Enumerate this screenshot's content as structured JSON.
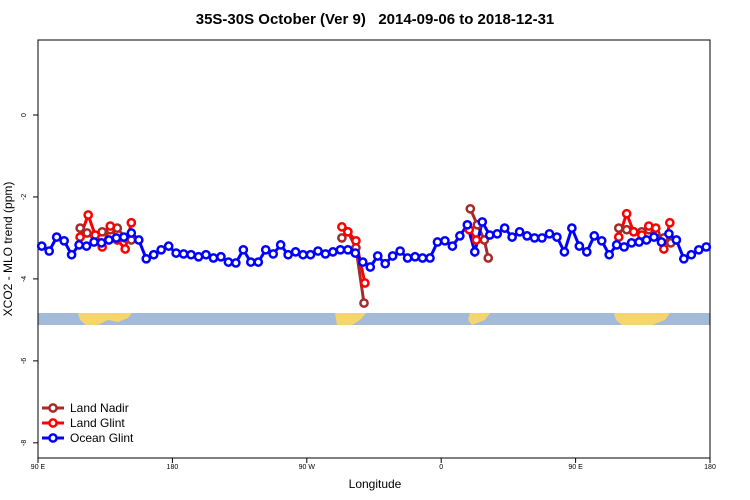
{
  "chart_data": {
    "type": "line",
    "title": "35S-30S October (Ver 9)   2014-09-06 to 2018-12-31",
    "x_label": "Longitude",
    "y_label": "XCO2 - MLO trend (ppm)",
    "xlim": [
      90,
      540
    ],
    "ylim": [
      -8.37,
      1.83
    ],
    "xticks": [
      {
        "value": 90,
        "label": "90 E"
      },
      180,
      {
        "value": 270,
        "label": "90 W"
      },
      {
        "value": 360,
        "label": "0"
      },
      {
        "value": 450,
        "label": "90 E"
      },
      {
        "value": 540,
        "label": "180"
      }
    ],
    "yticks": [
      -8,
      -6,
      -4,
      -2,
      0
    ],
    "legend": "bottom-left",
    "series": [
      {
        "name": "Land Nadir",
        "color": "#a52a2a",
        "x": [
          118.2,
          122.9,
          128.3,
          133.0,
          138.4,
          143.1,
          148.4,
          152.5,
          null,
          293.5,
          297.5,
          302.9,
          308.3,
          null,
          379.5,
          384.2,
          388.9,
          391.5,
          null,
          478.9,
          484.2,
          488.9,
          494.3,
          499.0,
          503.7,
          509.1,
          513.8
        ],
        "values": [
          -2.76,
          -2.88,
          -3.05,
          -2.85,
          -2.8,
          -2.76,
          -3.0,
          -3.05,
          null,
          -3.0,
          -2.85,
          -3.24,
          -4.59,
          null,
          -2.29,
          -2.68,
          -3.05,
          -3.49,
          null,
          -2.76,
          -2.8,
          -2.85,
          -2.85,
          -2.8,
          -2.9,
          -3.0,
          -3.12
        ]
      },
      {
        "name": "Land Glint",
        "color": "#ff0000",
        "x": [
          118.2,
          123.6,
          128.3,
          133.0,
          138.4,
          143.1,
          148.4,
          152.5,
          null,
          293.5,
          297.5,
          302.9,
          308.9,
          null,
          378.8,
          383.5,
          null,
          478.9,
          484.2,
          488.9,
          494.3,
          499.0,
          503.7,
          509.1,
          513.1
        ],
        "values": [
          -2.98,
          -2.44,
          -2.93,
          -3.22,
          -2.71,
          -3.05,
          -3.27,
          -2.63,
          null,
          -2.73,
          -2.85,
          -3.07,
          -4.1,
          null,
          -2.8,
          -3.05,
          null,
          -2.98,
          -2.41,
          -2.85,
          -2.93,
          -2.71,
          -2.76,
          -3.27,
          -2.63
        ]
      },
      {
        "name": "Ocean Glint",
        "color": "#0000ff",
        "x": [
          92.5,
          97.5,
          102.5,
          107.5,
          112.5,
          117.5,
          122.5,
          127.5,
          132.5,
          137.5,
          142.5,
          147.5,
          152.5,
          157.5,
          162.5,
          167.5,
          172.5,
          177.5,
          182.5,
          187.5,
          192.5,
          197.5,
          202.5,
          207.5,
          212.5,
          217.5,
          222.5,
          227.5,
          232.5,
          237.5,
          242.5,
          247.5,
          252.5,
          257.5,
          262.5,
          267.5,
          272.5,
          277.5,
          282.5,
          287.5,
          292.5,
          297.5,
          302.5,
          307.5,
          312.5,
          317.5,
          322.5,
          327.5,
          332.5,
          337.5,
          342.5,
          347.5,
          352.5,
          357.5,
          362.5,
          367.5,
          372.5,
          377.5,
          382.5,
          387.5,
          392.5,
          397.5,
          402.5,
          407.5,
          412.5,
          417.5,
          422.5,
          427.5,
          432.5,
          437.5,
          442.5,
          447.5,
          452.5,
          457.5,
          462.5,
          467.5,
          472.5,
          477.5,
          482.5,
          487.5,
          492.5,
          497.5,
          502.5,
          507.5,
          512.5,
          517.5,
          522.5,
          527.5,
          532.5,
          537.5
        ],
        "values": [
          -3.2,
          -3.32,
          -2.98,
          -3.07,
          -3.41,
          -3.17,
          -3.2,
          -3.1,
          -3.12,
          -3.05,
          -3.0,
          -2.98,
          -2.88,
          -3.05,
          -3.51,
          -3.41,
          -3.29,
          -3.2,
          -3.37,
          -3.39,
          -3.41,
          -3.46,
          -3.41,
          -3.49,
          -3.46,
          -3.59,
          -3.61,
          -3.29,
          -3.59,
          -3.59,
          -3.29,
          -3.39,
          -3.17,
          -3.41,
          -3.34,
          -3.41,
          -3.41,
          -3.32,
          -3.39,
          -3.34,
          -3.29,
          -3.29,
          -3.37,
          -3.59,
          -3.71,
          -3.44,
          -3.63,
          -3.44,
          -3.32,
          -3.49,
          -3.46,
          -3.49,
          -3.49,
          -3.1,
          -3.07,
          -3.2,
          -2.95,
          -2.68,
          -3.34,
          -2.61,
          -2.93,
          -2.9,
          -2.76,
          -2.98,
          -2.85,
          -2.95,
          -3.0,
          -3.0,
          -2.9,
          -2.98,
          -3.34,
          -2.76,
          -3.2,
          -3.34,
          -2.95,
          -3.07,
          -3.41,
          -3.17,
          -3.22,
          -3.12,
          -3.1,
          -3.05,
          -2.98,
          -3.1,
          -2.9,
          -3.05,
          -3.51,
          -3.41,
          -3.29,
          -3.22
        ]
      }
    ]
  }
}
